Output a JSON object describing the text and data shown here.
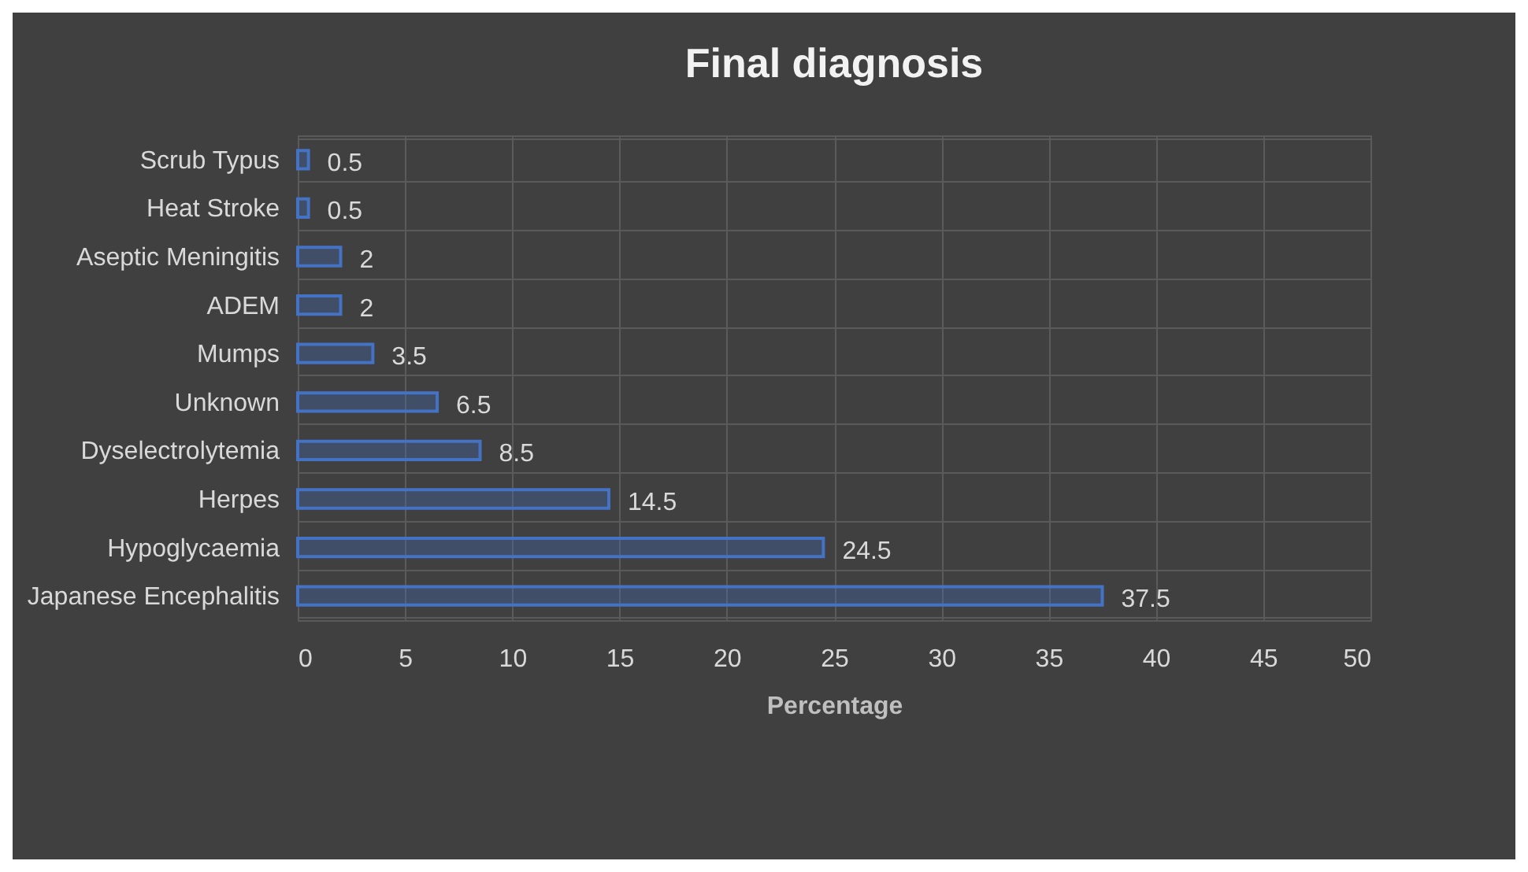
{
  "chart_data": {
    "type": "bar",
    "orientation": "horizontal",
    "title": "Final diagnosis",
    "xlabel": "Percentage",
    "categories": [
      "Scrub Typus",
      "Heat Stroke",
      "Aseptic Meningitis",
      "ADEM",
      "Mumps",
      "Unknown",
      "Dyselectrolytemia",
      "Herpes",
      "Hypoglycaemia",
      "Japanese Encephalitis"
    ],
    "values": [
      0.5,
      0.5,
      2,
      2,
      3.5,
      6.5,
      8.5,
      14.5,
      24.5,
      37.5
    ],
    "color": "#4472c4",
    "xlim": [
      0,
      50
    ],
    "xticks": [
      0,
      5,
      10,
      15,
      20,
      25,
      30,
      35,
      40,
      45,
      50
    ],
    "grid": true,
    "data_labels": true
  }
}
